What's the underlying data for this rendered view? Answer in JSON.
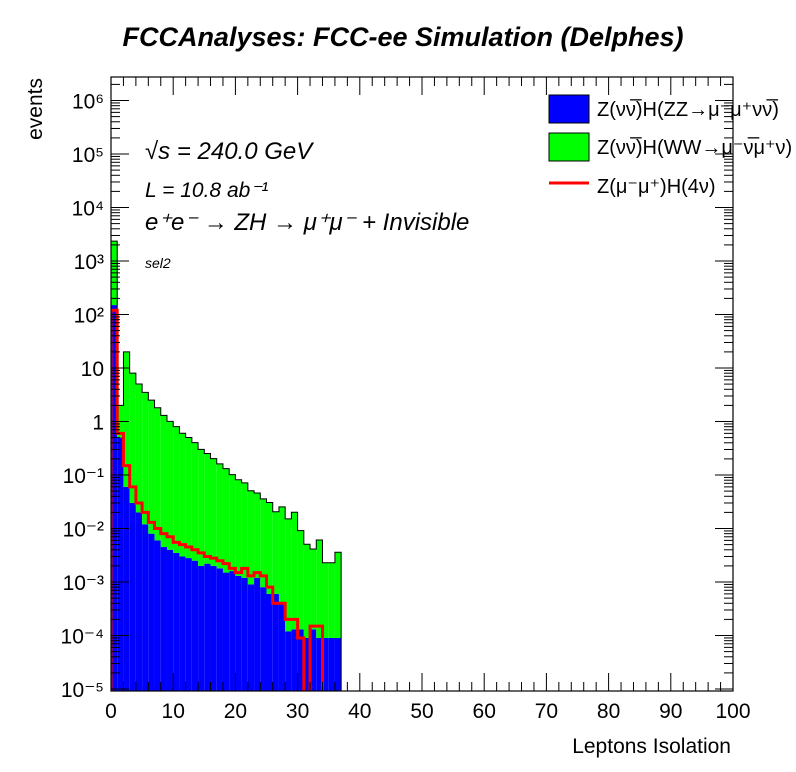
{
  "chart_data": {
    "type": "bar",
    "title": "FCCAnalyses: FCC-ee Simulation (Delphes)",
    "xlabel": "Leptons Isolation",
    "ylabel": "events",
    "xlim": [
      0,
      100
    ],
    "ylim": [
      8.5e-06,
      2000000
    ],
    "yscale": "log",
    "grid": false,
    "legend_position": "top-right",
    "annotations": {
      "sqrt_s": "√s = 240.0 GeV",
      "lumi": "L = 10.8 ab⁻¹",
      "process": "e⁺e⁻ → ZH → μ⁺μ⁻ + Invisible",
      "selection": "sel2"
    },
    "x_ticks": [
      "0",
      "10",
      "20",
      "30",
      "40",
      "50",
      "60",
      "70",
      "80",
      "90",
      "100"
    ],
    "y_ticks": [
      "10⁻⁵",
      "10⁻⁴",
      "10⁻³",
      "10⁻²",
      "10⁻¹",
      "1",
      "10",
      "10²",
      "10³",
      "10⁴",
      "10⁵",
      "10⁶"
    ],
    "bin_edges_start": 0,
    "bin_width": 1,
    "series": [
      {
        "name": "Z(νν̅)H(ZZ→μ⁻μ⁺νν̅)",
        "style": "stacked-fill",
        "color": "#0000ff",
        "values": [
          150,
          0.5,
          0.06,
          0.03,
          0.02,
          0.012,
          0.008,
          0.006,
          0.0045,
          0.004,
          0.0035,
          0.003,
          0.0028,
          0.0025,
          0.002,
          0.0022,
          0.002,
          0.0018,
          0.0015,
          0.0016,
          0.0013,
          0.0012,
          0.0009,
          0.0012,
          0.0008,
          0.0006,
          0.0006,
          0.0004,
          0.00012,
          0.00013,
          0.00013,
          9e-05,
          0.00013,
          9e-05,
          9e-05,
          9e-05,
          9e-05
        ]
      },
      {
        "name": "Z(νν̅)H(WW→μ⁻ν̅μ⁺ν)",
        "style": "stacked-fill",
        "color": "#00ff00",
        "values": [
          2200,
          1.5,
          20,
          8,
          5,
          3.5,
          2.5,
          1.8,
          1.3,
          1,
          0.8,
          0.6,
          0.5,
          0.4,
          0.3,
          0.25,
          0.2,
          0.16,
          0.13,
          0.1,
          0.08,
          0.07,
          0.05,
          0.045,
          0.035,
          0.03,
          0.02,
          0.025,
          0.015,
          0.02,
          0.009,
          0.005,
          0.004,
          0.006,
          0.0022,
          0.0022,
          0.0035
        ]
      },
      {
        "name": "Z(μ⁻μ⁺)H(4ν)",
        "style": "line",
        "color": "#ff0000",
        "values": [
          120,
          0.6,
          0.15,
          0.06,
          0.03,
          0.02,
          0.013,
          0.01,
          0.008,
          0.007,
          0.0055,
          0.005,
          0.0045,
          0.004,
          0.0035,
          0.003,
          0.0028,
          0.0025,
          0.0022,
          0.0018,
          0.0015,
          0.0018,
          0.0013,
          0.0015,
          0.0013,
          0.0008,
          0.0004,
          0.0004,
          0.0002,
          0.0002,
          9e-05,
          5e-06,
          0.00015,
          0.00015,
          5e-06,
          5e-06,
          5e-06
        ]
      }
    ]
  }
}
